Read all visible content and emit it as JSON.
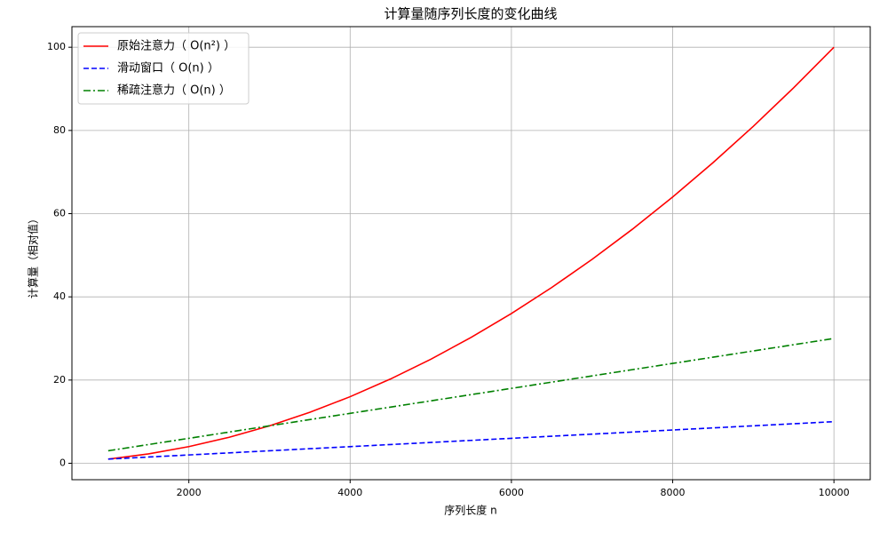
{
  "chart_data": {
    "type": "line",
    "title": "计算量随序列长度的变化曲线",
    "x_label": "序列长度 n",
    "y_label": "计算量（相对值）",
    "x": [
      1000,
      1500,
      2000,
      2500,
      3000,
      3500,
      4000,
      4500,
      5000,
      5500,
      6000,
      6500,
      7000,
      7500,
      8000,
      8500,
      9000,
      9500,
      10000
    ],
    "series": [
      {
        "name": "原始注意力（ O(n²) ）",
        "color": "#ff0000",
        "dash": "solid",
        "values": [
          1,
          2.25,
          4,
          6.25,
          9,
          12.25,
          16,
          20.25,
          25,
          30.25,
          36,
          42.25,
          49,
          56.25,
          64,
          72.25,
          81,
          90.25,
          100
        ]
      },
      {
        "name": "滑动窗口（ O(n) ）",
        "color": "#0000ff",
        "dash": "dashed",
        "values": [
          1,
          1.5,
          2,
          2.5,
          3,
          3.5,
          4,
          4.5,
          5,
          5.5,
          6,
          6.5,
          7,
          7.5,
          8,
          8.5,
          9,
          9.5,
          10
        ]
      },
      {
        "name": "稀疏注意力（ O(n) ）",
        "color": "#008000",
        "dash": "dashdot",
        "values": [
          3,
          4.5,
          6,
          7.5,
          9,
          10.5,
          12,
          13.5,
          15,
          16.5,
          18,
          19.5,
          21,
          22.5,
          24,
          25.5,
          27,
          28.5,
          30
        ]
      }
    ],
    "xlim": [
      550,
      10450
    ],
    "xticks": [
      2000,
      4000,
      6000,
      8000,
      10000
    ],
    "ylim": [
      -3.95,
      104.95
    ],
    "yticks": [
      0,
      20,
      40,
      60,
      80,
      100
    ],
    "grid": true,
    "legend": "upper left"
  }
}
